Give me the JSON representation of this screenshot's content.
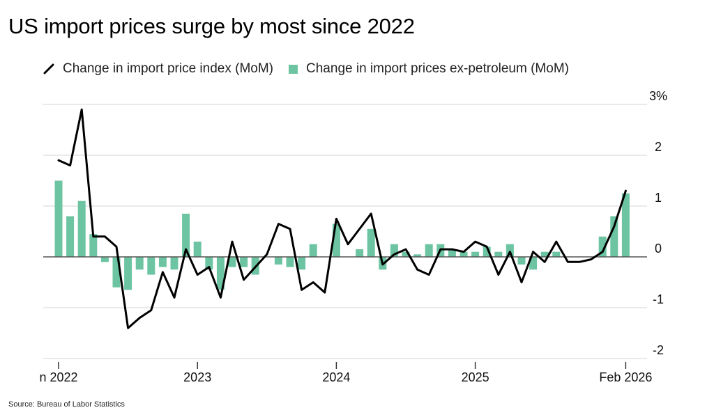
{
  "title": "US import prices surge by most since 2022",
  "source": "Source: Bureau of Labor Statistics",
  "colors": {
    "line": "#000000",
    "bars": "#6cc4a2",
    "grid": "#d6d6d6",
    "zero": "#555555"
  },
  "chart_data": {
    "type": "bar",
    "title": "US import prices surge by most since 2022",
    "legend_position": "top",
    "grid": true,
    "ylim": [
      -2,
      3
    ],
    "yticks": [
      {
        "value": 3,
        "label": "3%"
      },
      {
        "value": 2,
        "label": "2"
      },
      {
        "value": 1,
        "label": "1"
      },
      {
        "value": 0,
        "label": "0"
      },
      {
        "value": -1,
        "label": "-1"
      },
      {
        "value": -2,
        "label": "-2"
      }
    ],
    "xticks": [
      {
        "index": 0,
        "label": "n 2022"
      },
      {
        "index": 12,
        "label": "2023"
      },
      {
        "index": 24,
        "label": "2024"
      },
      {
        "index": 36,
        "label": "2025"
      },
      {
        "index": 49,
        "label": "Feb 2026"
      }
    ],
    "months": [
      "Jan 2022",
      "Feb 2022",
      "Mar 2022",
      "Apr 2022",
      "May 2022",
      "Jun 2022",
      "Jul 2022",
      "Aug 2022",
      "Sep 2022",
      "Oct 2022",
      "Nov 2022",
      "Dec 2022",
      "Jan 2023",
      "Feb 2023",
      "Mar 2023",
      "Apr 2023",
      "May 2023",
      "Jun 2023",
      "Jul 2023",
      "Aug 2023",
      "Sep 2023",
      "Oct 2023",
      "Nov 2023",
      "Dec 2023",
      "Jan 2024",
      "Feb 2024",
      "Mar 2024",
      "Apr 2024",
      "May 2024",
      "Jun 2024",
      "Jul 2024",
      "Aug 2024",
      "Sep 2024",
      "Oct 2024",
      "Nov 2024",
      "Dec 2024",
      "Jan 2025",
      "Feb 2025",
      "Mar 2025",
      "Apr 2025",
      "May 2025",
      "Jun 2025",
      "Jul 2025",
      "Aug 2025",
      "Sep 2025",
      "Oct 2025",
      "Nov 2025",
      "Dec 2025",
      "Jan 2026",
      "Feb 2026"
    ],
    "series": [
      {
        "name": "Change in import price index (MoM)",
        "type": "line",
        "values": [
          1.9,
          1.8,
          2.9,
          0.4,
          0.4,
          0.2,
          -1.4,
          -1.2,
          -1.05,
          -0.3,
          -0.8,
          0.15,
          -0.35,
          -0.2,
          -0.8,
          0.3,
          -0.45,
          -0.2,
          0.05,
          0.65,
          0.55,
          -0.65,
          -0.5,
          -0.7,
          0.75,
          0.25,
          0.55,
          0.85,
          -0.15,
          0.05,
          0.15,
          -0.25,
          -0.35,
          0.15,
          0.15,
          0.1,
          0.3,
          0.2,
          -0.35,
          0.1,
          -0.5,
          0.1,
          -0.1,
          0.3,
          -0.1,
          -0.1,
          -0.05,
          0.1,
          0.6,
          1.3
        ]
      },
      {
        "name": "Change in import prices ex-petroleum (MoM)",
        "type": "bar",
        "values": [
          1.5,
          0.8,
          1.1,
          0.45,
          -0.1,
          -0.6,
          -0.65,
          -0.25,
          -0.35,
          -0.2,
          -0.25,
          0.85,
          0.3,
          -0.25,
          -0.65,
          -0.2,
          -0.2,
          -0.35,
          0.0,
          -0.15,
          -0.2,
          -0.25,
          0.25,
          0.0,
          0.65,
          0.0,
          0.15,
          0.55,
          -0.25,
          0.25,
          0.1,
          0.05,
          0.25,
          0.25,
          0.15,
          0.1,
          0.1,
          0.2,
          0.1,
          0.25,
          -0.15,
          -0.25,
          0.1,
          0.1,
          0.0,
          0.0,
          0.0,
          0.4,
          0.8,
          1.25
        ]
      }
    ]
  }
}
